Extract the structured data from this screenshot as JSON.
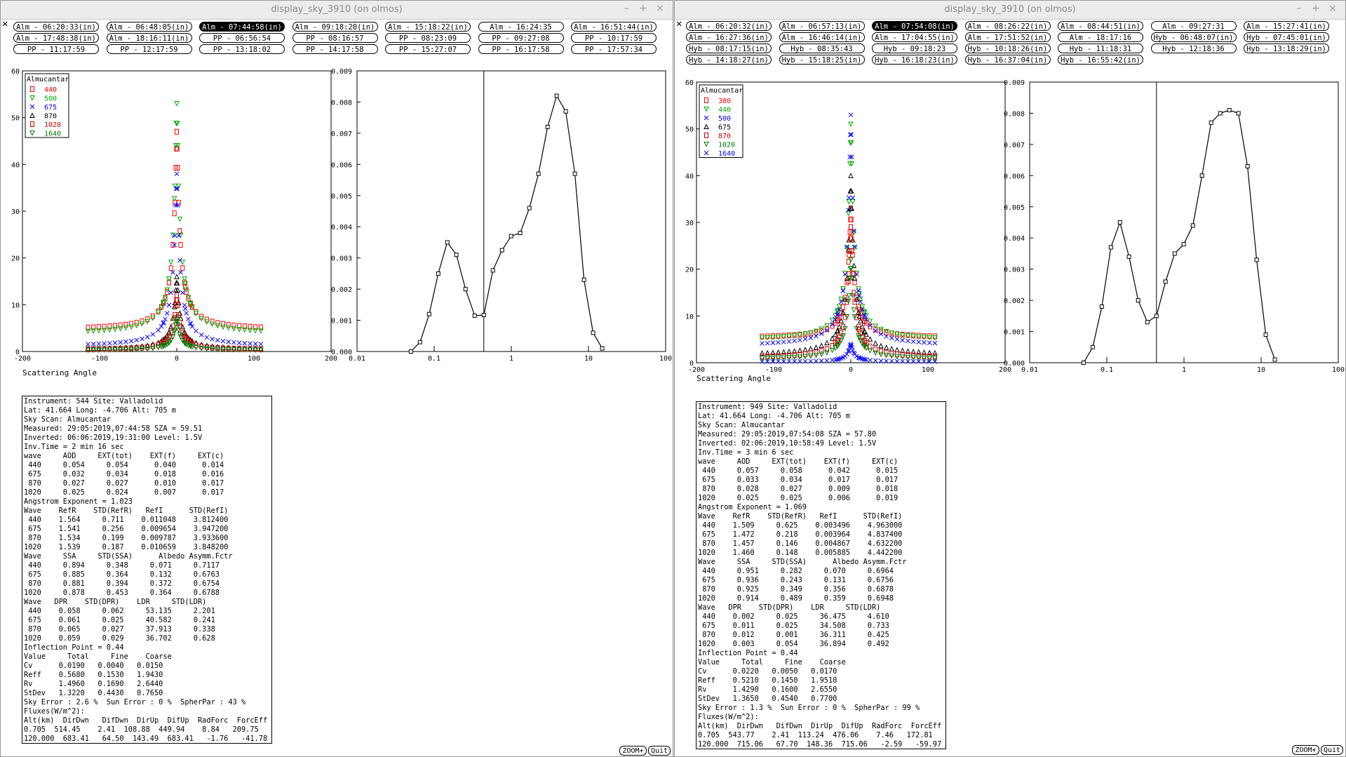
{
  "left": {
    "title": "display_sky_3910 (on olmos)",
    "close_glyph": "✕",
    "tabs": [
      {
        "label": "Alm - 06:20:33(in)",
        "active": false
      },
      {
        "label": "Alm - 06:48:05(in)",
        "active": false
      },
      {
        "label": "Alm - 07:44:58(in)",
        "active": true
      },
      {
        "label": "Alm - 09:18:20(in)",
        "active": false
      },
      {
        "label": "Alm - 15:18:22(in)",
        "active": false
      },
      {
        "label": "Alm - 16:24:35",
        "active": false
      },
      {
        "label": "Alm - 16:51:44(in)",
        "active": false
      },
      {
        "label": "Alm - 17:48:38(in)",
        "active": false
      },
      {
        "label": "Alm - 18:16:11(in)",
        "active": false
      },
      {
        "label": "PP - 06:56:54",
        "active": false
      },
      {
        "label": "PP - 08:16:57",
        "active": false
      },
      {
        "label": "PP - 08:23:09",
        "active": false
      },
      {
        "label": "PP - 09:27:08",
        "active": false
      },
      {
        "label": "PP - 10:17:59",
        "active": false
      },
      {
        "label": "PP - 11:17:59",
        "active": false
      },
      {
        "label": "PP - 12:17:59",
        "active": false
      },
      {
        "label": "PP - 13:18:02",
        "active": false
      },
      {
        "label": "PP - 14:17:58",
        "active": false
      },
      {
        "label": "PP - 15:27:07",
        "active": false
      },
      {
        "label": "PP - 16:17:58",
        "active": false
      },
      {
        "label": "PP - 17:57:34",
        "active": false
      }
    ],
    "chart_left": {
      "type": "scatter",
      "xlabel": "Scattering Angle",
      "xlim": [
        -200,
        200
      ],
      "ylim": [
        0,
        60
      ],
      "xticks": [
        "-200",
        "-100",
        "0",
        "100",
        "200"
      ],
      "yticks": [
        "0",
        "10",
        "20",
        "30",
        "40",
        "50",
        "60"
      ],
      "legend_title": "Almucantar",
      "legend_position": "top-left",
      "series": [
        {
          "name": "440",
          "color": "#ff0000",
          "marker": "square",
          "peak": 47,
          "base": 4.5
        },
        {
          "name": "500",
          "color": "#00aa00",
          "marker": "tri-down",
          "peak": 53,
          "base": 3.6
        },
        {
          "name": "675",
          "color": "#0000ff",
          "marker": "x",
          "peak": 38,
          "base": 1.0
        },
        {
          "name": "870",
          "color": "#000000",
          "marker": "triangle",
          "peak": 16,
          "base": 0.4
        },
        {
          "name": "1020",
          "color": "#cc0000",
          "marker": "square",
          "peak": 12,
          "base": 0.3
        },
        {
          "name": "1640",
          "color": "#007700",
          "marker": "tri-down",
          "peak": 7,
          "base": 0.2
        }
      ]
    },
    "chart_right": {
      "type": "line",
      "xscale": "log",
      "xlim": [
        0.01,
        100
      ],
      "ylim": [
        0,
        0.009
      ],
      "xticks": [
        "0.01",
        "0.1",
        "1",
        "10",
        "100"
      ],
      "yticks": [
        "0.000",
        "0.001",
        "0.002",
        "0.003",
        "0.004",
        "0.005",
        "0.006",
        "0.007",
        "0.008",
        "0.009"
      ],
      "inflection_point": 0.44,
      "x": [
        0.05,
        0.0656,
        0.0861,
        0.113,
        0.148,
        0.194,
        0.255,
        0.335,
        0.44,
        0.577,
        0.758,
        0.994,
        1.305,
        1.712,
        2.247,
        2.949,
        3.87,
        5.08,
        6.666,
        8.748,
        11.48,
        15.07
      ],
      "y": [
        0.0,
        0.0003,
        0.0012,
        0.0025,
        0.0035,
        0.0031,
        0.002,
        0.00115,
        0.00117,
        0.0026,
        0.00325,
        0.0037,
        0.0038,
        0.0046,
        0.0057,
        0.0072,
        0.0082,
        0.0077,
        0.0057,
        0.0023,
        0.0006,
        0.0001
      ]
    },
    "info": [
      "Instrument: 544 Site: Valladolid",
      "Lat: 41.664 Long: -4.706 Alt: 705 m",
      "Sky Scan: Almucantar",
      "Measured: 29:05:2019,07:44:58 SZA = 59.51",
      "Inverted: 06:06:2019,19:31:00 Level: 1.5V",
      "Inv.Time = 2 min 16 sec",
      "wave     AOD     EXT(tot)    EXT(f)     EXT(c)",
      " 440     0.054     0.054      0.040      0.014",
      " 675     0.032     0.034      0.018      0.016",
      " 870     0.027     0.027      0.010      0.017",
      "1020     0.025     0.024      0.007      0.017",
      "Angstrom Exponent = 1.023",
      "Wave    RefR    STD(RefR)   RefI      STD(RefI)",
      " 440    1.564     0.711    0.011048    3.812400",
      " 675    1.541     0.256    0.009654    3.947200",
      " 870    1.534     0.199    0.009787    3.933600",
      "1020    1.539     0.187    0.010659    3.848200",
      "Wave     SSA     STD(SSA)      Albedo Asymm.Fctr",
      " 440     0.894     0.348     0.071     0.7117",
      " 675     0.885     0.364     0.132     0.6763",
      " 870     0.881     0.394     0.372     0.6754",
      "1020     0.878     0.453     0.364     0.6788",
      "Wave   DPR    STD(DPR)    LDR     STD(LDR)",
      " 440    0.058     0.062     53.135     2.201",
      " 675    0.061     0.025     40.582     0.241",
      " 870    0.065     0.027     37.913     0.338",
      "1020    0.059     0.029     36.702     0.628",
      "Inflection Point = 0.44",
      "Value     Total     Fine    Coarse",
      "Cv      0.0190   0.0040   0.0150",
      "Reff    0.5680   0.1530   1.9430",
      "Rv      1.4960   0.1690   2.6440",
      "StDev   1.3220   0.4430   0.7650",
      "Sky Error : 2.6 %  Sun Error : 0 %  SpherPar : 43 %",
      "Fluxes(W/m^2):",
      "Alt(km)  DirDwn   DifDwn  DirUp  DifUp  RadForc  ForcEff",
      "0.705  514.45    2.41  108.88  449.94    8.84   209.75",
      "120.000  683.41   64.50  143.49  683.41   -1.76   -41.78"
    ],
    "zoom_label": "ZOOM+",
    "quit_label": "Quit"
  },
  "right": {
    "title": "display_sky_3910 (on olmos)",
    "close_glyph": "✕",
    "tabs": [
      {
        "label": "Alm - 06:20:32(in)",
        "active": false
      },
      {
        "label": "Alm - 06:57:13(in)",
        "active": false
      },
      {
        "label": "Alm - 07:54:08(in)",
        "active": true
      },
      {
        "label": "Alm - 08:26:22(in)",
        "active": false
      },
      {
        "label": "Alm - 08:44:51(in)",
        "active": false
      },
      {
        "label": "Alm - 09:27:31",
        "active": false
      },
      {
        "label": "Alm - 15:27:41(in)",
        "active": false
      },
      {
        "label": "Alm - 16:27:36(in)",
        "active": false
      },
      {
        "label": "Alm - 16:46:14(in)",
        "active": false
      },
      {
        "label": "Alm - 17:04:55(in)",
        "active": false
      },
      {
        "label": "Alm - 17:51:52(in)",
        "active": false
      },
      {
        "label": "Alm - 18:17:16",
        "active": false
      },
      {
        "label": "Hyb - 06:48:07(in)",
        "active": false
      },
      {
        "label": "Hyb - 07:45:01(in)",
        "active": false
      },
      {
        "label": "Hyb - 08:17:15(in)",
        "active": false
      },
      {
        "label": "Hyb - 08:35:43",
        "active": false
      },
      {
        "label": "Hyb - 09:18:23",
        "active": false
      },
      {
        "label": "Hyb - 10:18:26(in)",
        "active": false
      },
      {
        "label": "Hyb - 11:18:31",
        "active": false
      },
      {
        "label": "Hyb - 12:18:36",
        "active": false
      },
      {
        "label": "Hyb - 13:18:29(in)",
        "active": false
      },
      {
        "label": "Hyb - 14:18:27(in)",
        "active": false
      },
      {
        "label": "Hyb - 15:18:25(in)",
        "active": false
      },
      {
        "label": "Hyb - 16:18:23(in)",
        "active": false
      },
      {
        "label": "Hyb - 16:37:04(in)",
        "active": false
      },
      {
        "label": "Hyb - 16:55:42(in)",
        "active": false
      }
    ],
    "chart_left": {
      "type": "scatter",
      "xlabel": "Scattering Angle",
      "xlim": [
        -200,
        200
      ],
      "ylim": [
        0,
        60
      ],
      "xticks": [
        "-200",
        "-100",
        "0",
        "100",
        "200"
      ],
      "yticks": [
        "0",
        "10",
        "20",
        "30",
        "40",
        "50",
        "60"
      ],
      "legend_title": "Almucantar",
      "legend_position": "top-left",
      "series": [
        {
          "name": "380",
          "color": "#ff0000",
          "marker": "square",
          "peak": 33,
          "base": 5.2
        },
        {
          "name": "440",
          "color": "#00aa00",
          "marker": "tri-down",
          "peak": 51,
          "base": 4.6
        },
        {
          "name": "500",
          "color": "#0000ff",
          "marker": "x",
          "peak": 53,
          "base": 3.4
        },
        {
          "name": "675",
          "color": "#000000",
          "marker": "triangle",
          "peak": 40,
          "base": 1.5
        },
        {
          "name": "870",
          "color": "#cc0000",
          "marker": "square",
          "peak": 29,
          "base": 0.9
        },
        {
          "name": "1020",
          "color": "#007700",
          "marker": "tri-down",
          "peak": 22,
          "base": 0.6
        },
        {
          "name": "1640",
          "color": "#0000ff",
          "marker": "x",
          "peak": 4,
          "base": 0.2
        }
      ]
    },
    "chart_right": {
      "type": "line",
      "xscale": "log",
      "xlim": [
        0.01,
        100
      ],
      "ylim": [
        0,
        0.009
      ],
      "xticks": [
        "0.01",
        "0.1",
        "1",
        "10",
        "100"
      ],
      "yticks": [
        "0.000",
        "0.001",
        "0.002",
        "0.003",
        "0.004",
        "0.005",
        "0.006",
        "0.007",
        "0.008",
        "0.009"
      ],
      "inflection_point": 0.44,
      "x": [
        0.05,
        0.0656,
        0.0861,
        0.113,
        0.148,
        0.194,
        0.255,
        0.335,
        0.44,
        0.577,
        0.758,
        0.994,
        1.305,
        1.712,
        2.247,
        2.949,
        3.87,
        5.08,
        6.666,
        8.748,
        11.48,
        15.07
      ],
      "y": [
        0.0,
        0.0005,
        0.0018,
        0.0037,
        0.0045,
        0.0034,
        0.002,
        0.0013,
        0.0015,
        0.0026,
        0.0035,
        0.0038,
        0.0044,
        0.006,
        0.0077,
        0.008,
        0.0081,
        0.008,
        0.0063,
        0.0033,
        0.0009,
        0.0001
      ]
    },
    "info": [
      "Instrument: 949 Site: Valladolid",
      "Lat: 41.664 Long: -4.706 Alt: 705 m",
      "Sky Scan: Almucantar",
      "Measured: 29:05:2019,07:54:08 SZA = 57.80",
      "Inverted: 02:06:2019,10:58:49 Level: 1.5V",
      "Inv.Time = 3 min 6 sec",
      "wave     AOD     EXT(tot)    EXT(f)     EXT(c)",
      " 440     0.057     0.058      0.042      0.015",
      " 675     0.033     0.034      0.017      0.017",
      " 870     0.028     0.027      0.009      0.018",
      "1020     0.025     0.025      0.006      0.019",
      "Angstrom Exponent = 1.069",
      "Wave    RefR    STD(RefR)   RefI      STD(RefI)",
      " 440    1.509     0.625    0.003496    4.963000",
      " 675    1.472     0.218    0.003964    4.837400",
      " 870    1.457     0.146    0.004867    4.632200",
      "1020    1.460     0.148    0.005885    4.442200",
      "Wave     SSA     STD(SSA)      Albedo Asymm.Fctr",
      " 440     0.951     0.282     0.070     0.6964",
      " 675     0.936     0.243     0.131     0.6756",
      " 870     0.925     0.349     0.356     0.6878",
      "1020     0.914     0.489     0.359     0.6948",
      "Wave   DPR    STD(DPR)    LDR     STD(LDR)",
      " 440    0.002     0.025     36.475     4.610",
      " 675    0.011     0.025     34.508     0.733",
      " 870    0.012     0.001     36.311     0.425",
      "1020    0.003     0.054     36.894     0.492",
      "Inflection Point = 0.44",
      "Value     Total     Fine    Coarse",
      "Cv      0.0220   0.0050   0.0170",
      "Reff    0.5210   0.1450   1.9510",
      "Rv      1.4290   0.1600   2.6550",
      "StDev   1.3650   0.4540   0.7700",
      "Sky Error : 1.3 %  Sun Error : 0 %  SpherPar : 99 %",
      "Fluxes(W/m^2):",
      "Alt(km)  DirDwn   DifDwn  DirUp  DifUp  RadForc  ForcEff",
      "0.705  543.77    2.41  113.24  476.06    7.46   172.81",
      "120.000  715.06   67.70  148.36  715.06   -2.59   -59.97"
    ],
    "zoom_label": "ZOOM+",
    "quit_label": "Quit"
  }
}
